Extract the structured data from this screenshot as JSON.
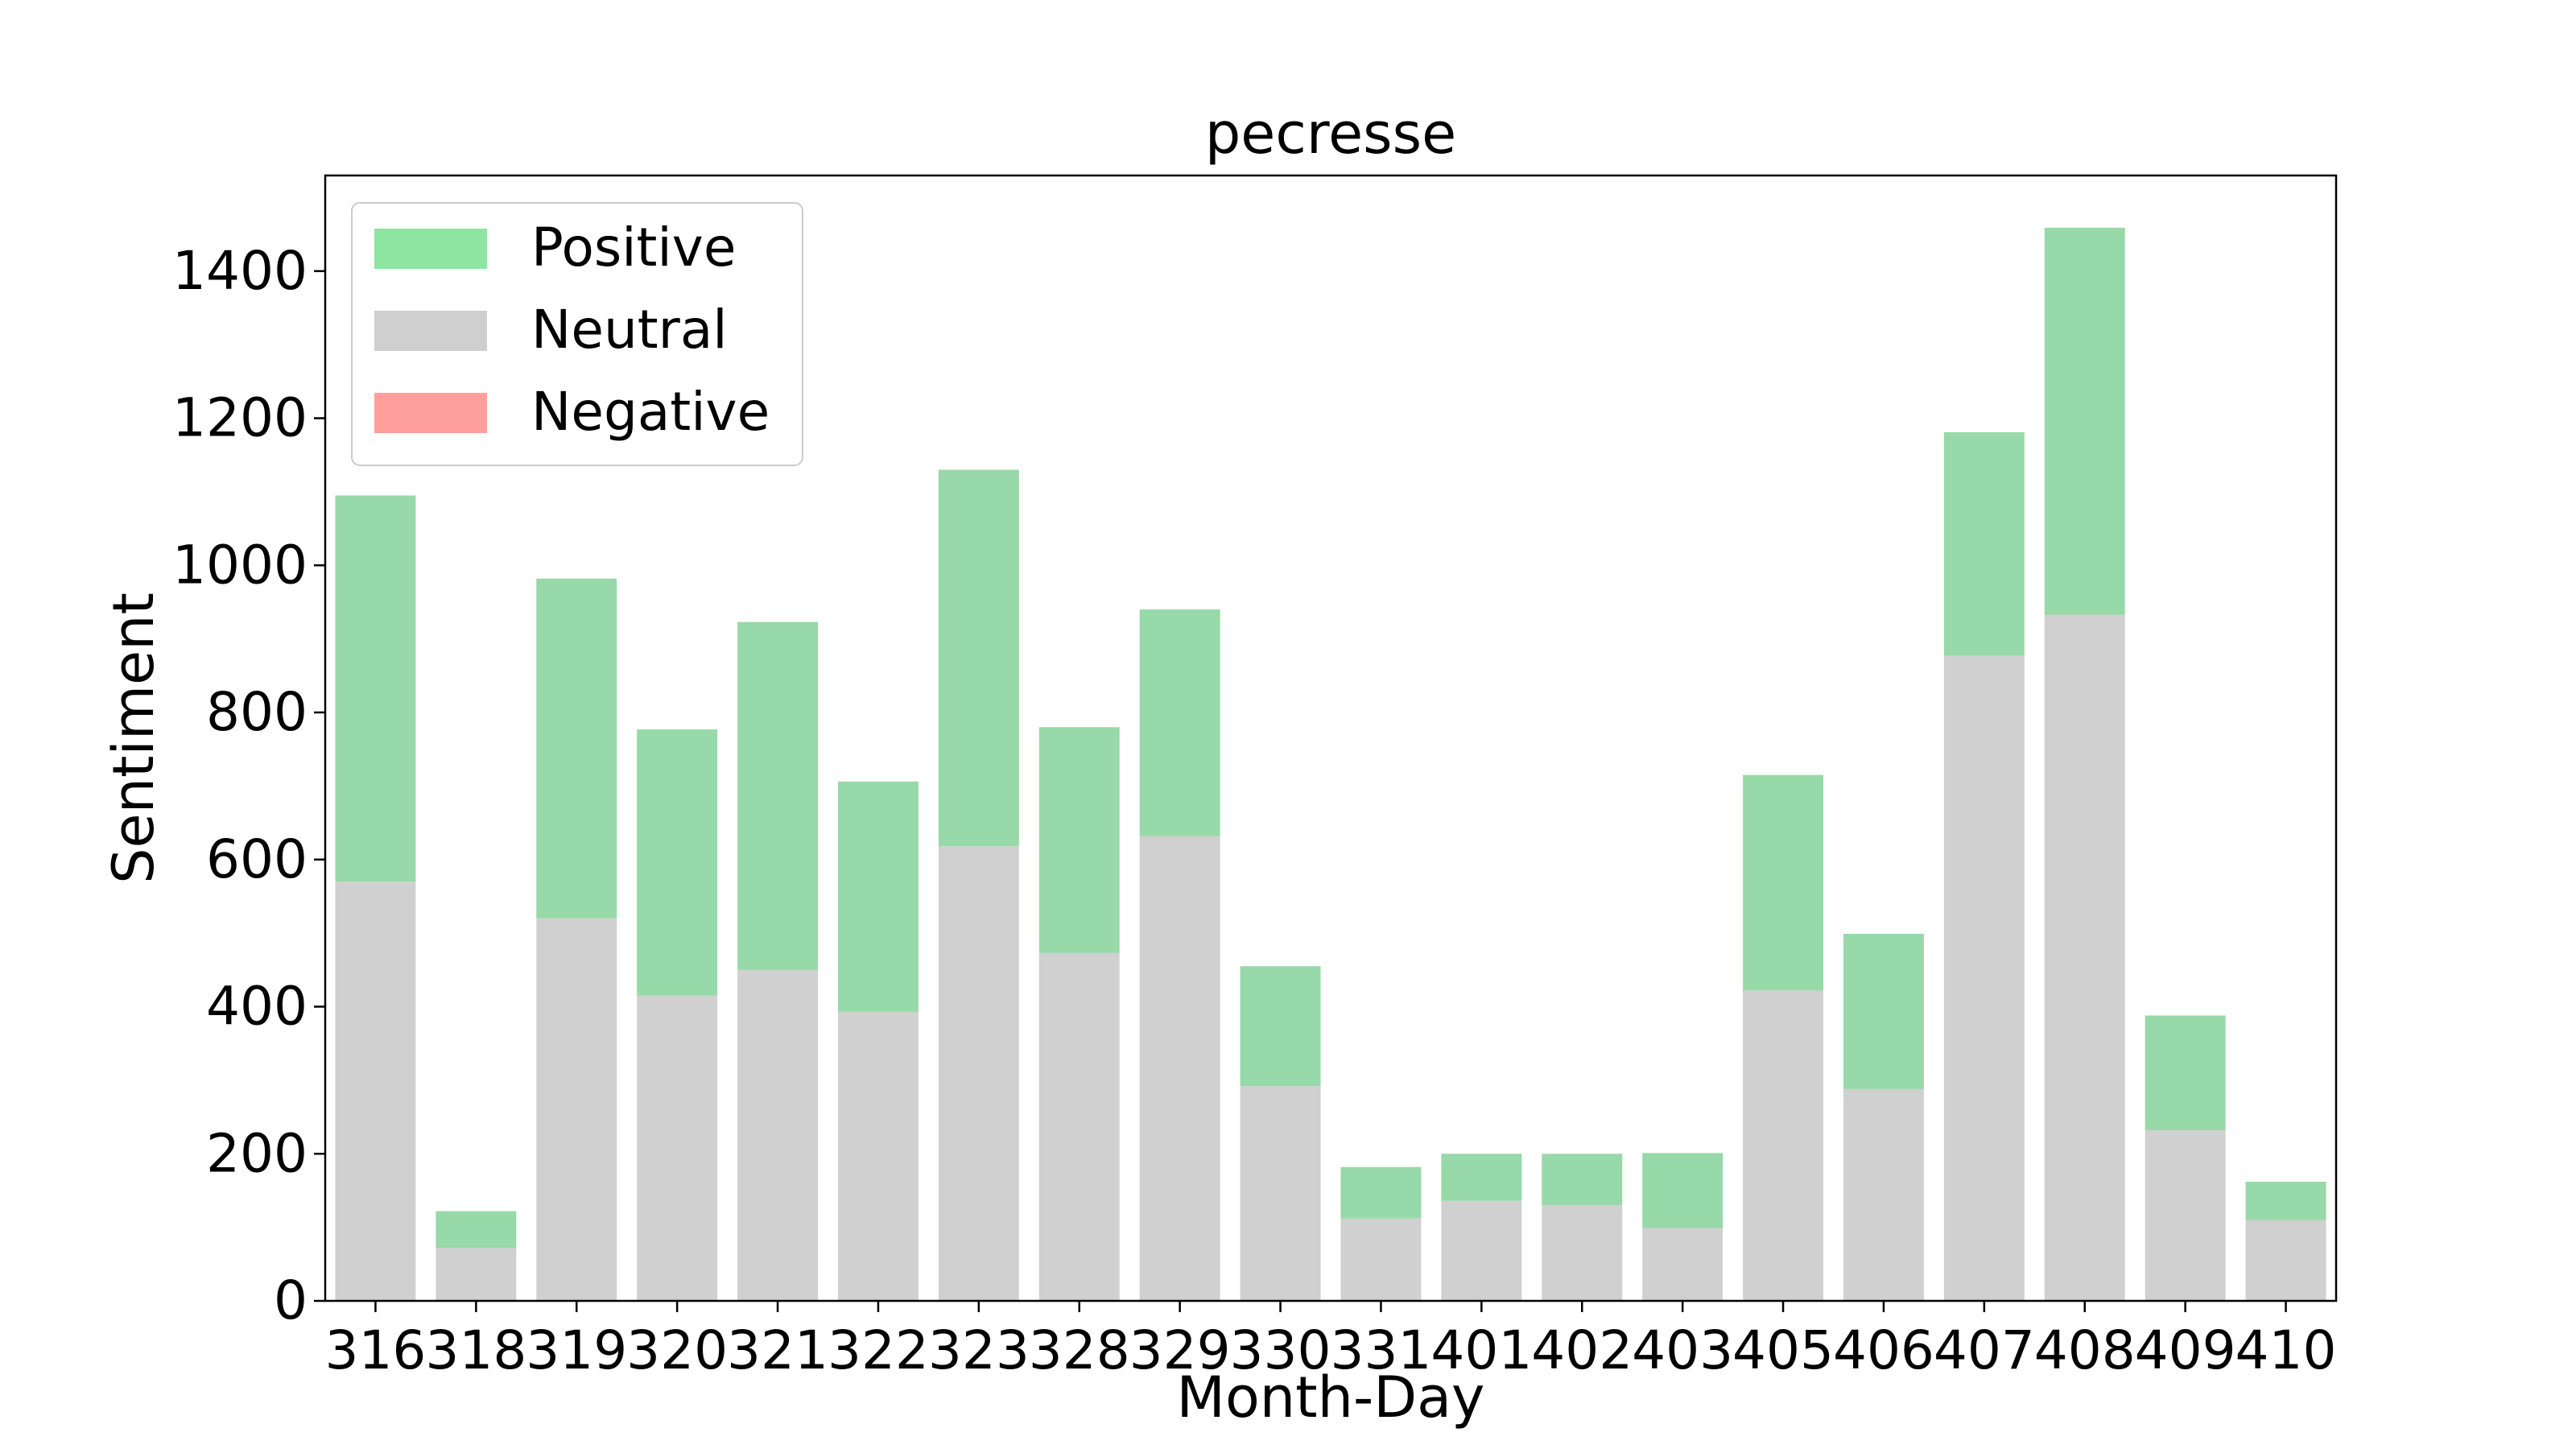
{
  "chart_data": {
    "type": "bar",
    "stacked": true,
    "title": "pecresse",
    "xlabel": "Month-Day",
    "ylabel": "Sentiment",
    "ylim": [
      0,
      1530
    ],
    "yticks": [
      0,
      200,
      400,
      600,
      800,
      1000,
      1200,
      1400
    ],
    "grid": false,
    "legend_position": "top-left",
    "categories": [
      "316",
      "318",
      "319",
      "320",
      "321",
      "322",
      "323",
      "328",
      "329",
      "330",
      "331",
      "401",
      "402",
      "403",
      "405",
      "406",
      "407",
      "408",
      "409",
      "410"
    ],
    "series": [
      {
        "name": "Negative",
        "color": "#ff9f9b",
        "values": [
          0,
          0,
          0,
          0,
          0,
          0,
          0,
          0,
          0,
          0,
          0,
          0,
          0,
          0,
          0,
          0,
          0,
          0,
          0,
          0
        ]
      },
      {
        "name": "Neutral",
        "color": "#d0d0d0",
        "values": [
          570,
          72,
          520,
          415,
          450,
          393,
          618,
          473,
          632,
          292,
          112,
          136,
          130,
          99,
          422,
          288,
          877,
          933,
          232,
          110
        ]
      },
      {
        "name": "Positive",
        "color": "#97d9a8",
        "values": [
          525,
          50,
          462,
          362,
          473,
          313,
          512,
          307,
          308,
          163,
          70,
          64,
          70,
          102,
          293,
          211,
          304,
          526,
          156,
          52
        ]
      }
    ],
    "legend": [
      {
        "label": "Positive",
        "color": "#8de5a1"
      },
      {
        "label": "Neutral",
        "color": "#cfcfcf"
      },
      {
        "label": "Negative",
        "color": "#ff9f9b"
      }
    ]
  }
}
